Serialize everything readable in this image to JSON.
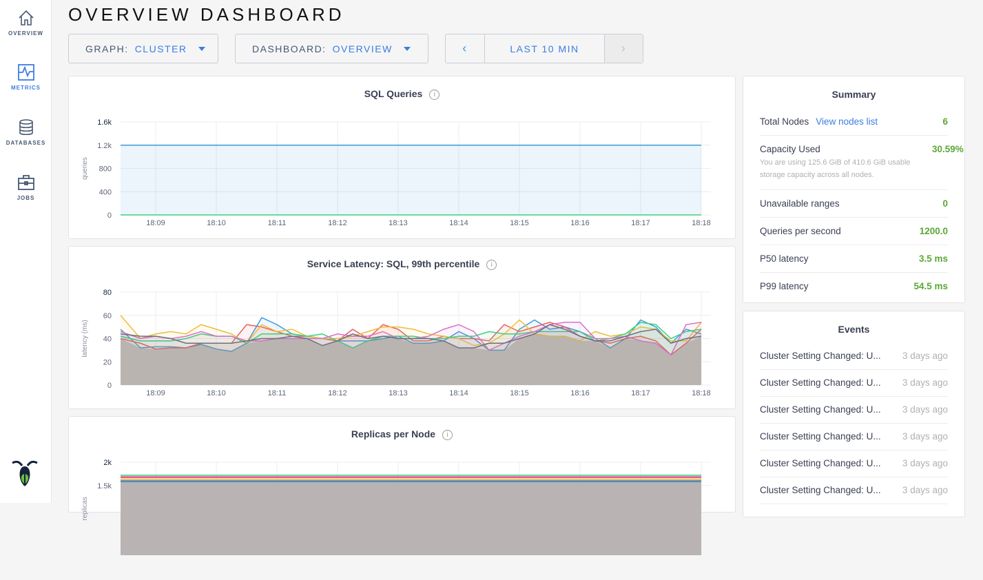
{
  "sidebar": {
    "items": [
      {
        "label": "OVERVIEW",
        "icon": "home-icon"
      },
      {
        "label": "METRICS",
        "icon": "metrics-icon",
        "active": true
      },
      {
        "label": "DATABASES",
        "icon": "database-icon"
      },
      {
        "label": "JOBS",
        "icon": "briefcase-icon"
      }
    ],
    "logo": "cockroach-logo"
  },
  "page_title": "OVERVIEW DASHBOARD",
  "controls": {
    "graph_label": "GRAPH:",
    "graph_value": "CLUSTER",
    "dashboard_label": "DASHBOARD:",
    "dashboard_value": "OVERVIEW",
    "prev": "‹",
    "time_range": "LAST 10 MIN",
    "next": "›"
  },
  "colors": {
    "accent": "#3a7de1",
    "value_green": "#5aa735",
    "series": [
      "#3a9ad9",
      "#e85d5d",
      "#efbc3a",
      "#3ccf80",
      "#d871c8",
      "#6b6f80"
    ]
  },
  "charts": [
    {
      "title": "SQL Queries",
      "info": "i",
      "ylabel": "queries",
      "yticks": [
        "1.6k",
        "1.2k",
        "800",
        "400",
        "0"
      ],
      "xticks": [
        "18:09",
        "18:10",
        "18:11",
        "18:12",
        "18:13",
        "18:14",
        "18:15",
        "18:16",
        "18:17",
        "18:18"
      ]
    },
    {
      "title": "Service Latency: SQL, 99th percentile",
      "info": "i",
      "ylabel": "latency (ms)",
      "yticks": [
        "80",
        "60",
        "40",
        "20",
        "0"
      ],
      "xticks": [
        "18:09",
        "18:10",
        "18:11",
        "18:12",
        "18:13",
        "18:14",
        "18:15",
        "18:16",
        "18:17",
        "18:18"
      ]
    },
    {
      "title": "Replicas per Node",
      "info": "i",
      "ylabel": "replicas",
      "yticks": [
        "2k",
        "1.5k"
      ],
      "xticks": []
    }
  ],
  "chart_data": [
    {
      "type": "area",
      "title": "SQL Queries",
      "ylabel": "queries",
      "ylim": [
        0,
        1600
      ],
      "grid": true,
      "x": [
        "18:08:30",
        "18:18:00"
      ],
      "series": [
        {
          "values": [
            1200,
            1200
          ],
          "color": "#3a9ad9"
        },
        {
          "values": [
            0,
            0
          ],
          "color": "#3ccf80"
        }
      ]
    },
    {
      "type": "line",
      "title": "Service Latency: SQL, 99th percentile",
      "ylabel": "latency (ms)",
      "ylim": [
        0,
        80
      ],
      "grid": true,
      "x": [
        "18:08:30",
        "18:08:45",
        "18:09:00",
        "18:09:15",
        "18:09:30",
        "18:09:45",
        "18:10:00",
        "18:10:15",
        "18:10:30",
        "18:10:45",
        "18:11:00",
        "18:11:15",
        "18:11:30",
        "18:11:45",
        "18:12:00",
        "18:12:15",
        "18:12:30",
        "18:12:45",
        "18:13:00",
        "18:13:15",
        "18:13:30",
        "18:13:45",
        "18:14:00",
        "18:14:15",
        "18:14:30",
        "18:14:45",
        "18:15:00",
        "18:15:15",
        "18:15:30",
        "18:15:45",
        "18:16:00",
        "18:16:15",
        "18:16:30",
        "18:16:45",
        "18:17:00",
        "18:17:15",
        "18:17:30",
        "18:17:45",
        "18:18:00"
      ],
      "series": [
        {
          "color": "#3a9ad9",
          "values": [
            48,
            32,
            33,
            33,
            32,
            35,
            31,
            29,
            36,
            58,
            52,
            44,
            42,
            40,
            38,
            38,
            38,
            40,
            42,
            36,
            36,
            38,
            46,
            40,
            30,
            30,
            48,
            56,
            48,
            50,
            46,
            40,
            32,
            40,
            56,
            50,
            36,
            48,
            44
          ]
        },
        {
          "color": "#e85d5d",
          "values": [
            40,
            36,
            31,
            32,
            32,
            36,
            36,
            36,
            52,
            50,
            46,
            42,
            42,
            40,
            38,
            48,
            40,
            52,
            48,
            38,
            38,
            42,
            40,
            40,
            38,
            52,
            46,
            50,
            54,
            50,
            42,
            38,
            36,
            40,
            42,
            38,
            26,
            36,
            48
          ]
        },
        {
          "color": "#efbc3a",
          "values": [
            60,
            40,
            44,
            46,
            44,
            52,
            48,
            44,
            36,
            52,
            46,
            48,
            42,
            40,
            40,
            42,
            46,
            50,
            50,
            48,
            44,
            42,
            40,
            34,
            36,
            44,
            56,
            44,
            42,
            42,
            38,
            46,
            42,
            44,
            50,
            48,
            38,
            38,
            54
          ]
        },
        {
          "color": "#3ccf80",
          "values": [
            42,
            38,
            38,
            38,
            40,
            44,
            42,
            42,
            36,
            44,
            44,
            44,
            42,
            44,
            38,
            32,
            38,
            42,
            42,
            42,
            40,
            40,
            42,
            42,
            46,
            44,
            44,
            46,
            46,
            46,
            46,
            38,
            40,
            44,
            54,
            52,
            40,
            46,
            48
          ]
        },
        {
          "color": "#d871c8",
          "values": [
            46,
            40,
            42,
            40,
            42,
            46,
            42,
            42,
            38,
            38,
            40,
            40,
            40,
            40,
            44,
            42,
            42,
            46,
            40,
            40,
            42,
            48,
            52,
            46,
            30,
            36,
            42,
            46,
            52,
            54,
            54,
            40,
            40,
            42,
            38,
            36,
            26,
            52,
            54
          ]
        },
        {
          "color": "#6b6f80",
          "values": [
            44,
            42,
            42,
            40,
            36,
            36,
            36,
            36,
            38,
            40,
            40,
            42,
            40,
            34,
            38,
            44,
            40,
            42,
            40,
            40,
            40,
            38,
            32,
            32,
            36,
            36,
            40,
            44,
            52,
            48,
            42,
            38,
            38,
            42,
            46,
            48,
            36,
            40,
            42
          ]
        }
      ]
    },
    {
      "type": "line",
      "title": "Replicas per Node",
      "ylabel": "replicas",
      "ylim": [
        0,
        2000
      ],
      "grid": true,
      "x": [
        "18:08:30",
        "18:18:00"
      ],
      "series": [
        {
          "color": "#3ccf80",
          "values": [
            1720,
            1720
          ]
        },
        {
          "color": "#d871c8",
          "values": [
            1690,
            1690
          ]
        },
        {
          "color": "#e85d5d",
          "values": [
            1670,
            1670
          ]
        },
        {
          "color": "#efbc3a",
          "values": [
            1630,
            1630
          ]
        },
        {
          "color": "#6b6f80",
          "values": [
            1600,
            1600
          ]
        },
        {
          "color": "#3a9ad9",
          "values": [
            1580,
            1580
          ]
        }
      ]
    }
  ],
  "summary": {
    "title": "Summary",
    "rows": [
      {
        "label": "Total Nodes",
        "link": "View nodes list",
        "value": "6"
      },
      {
        "label": "Capacity Used",
        "value": "30.59%",
        "note": "You are using 125.6 GiB of 410.6 GiB usable storage capacity across all nodes."
      },
      {
        "label": "Unavailable ranges",
        "value": "0"
      },
      {
        "label": "Queries per second",
        "value": "1200.0"
      },
      {
        "label": "P50 latency",
        "value": "3.5 ms"
      },
      {
        "label": "P99 latency",
        "value": "54.5 ms"
      }
    ]
  },
  "events": {
    "title": "Events",
    "items": [
      {
        "text": "Cluster Setting Changed: U...",
        "time": "3 days ago"
      },
      {
        "text": "Cluster Setting Changed: U...",
        "time": "3 days ago"
      },
      {
        "text": "Cluster Setting Changed: U...",
        "time": "3 days ago"
      },
      {
        "text": "Cluster Setting Changed: U...",
        "time": "3 days ago"
      },
      {
        "text": "Cluster Setting Changed: U...",
        "time": "3 days ago"
      },
      {
        "text": "Cluster Setting Changed: U...",
        "time": "3 days ago"
      }
    ]
  }
}
